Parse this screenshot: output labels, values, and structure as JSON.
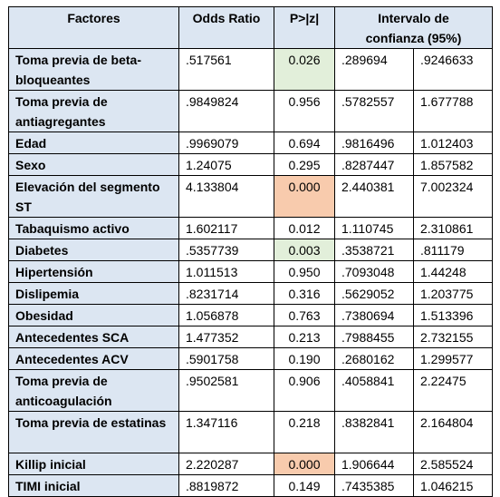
{
  "table": {
    "header": [
      "Factores",
      "Odds Ratio",
      "P>|z|",
      "Intervalo de confianza (95%)"
    ],
    "rows": [
      [
        "Toma previa de beta-bloqueantes",
        ".517561",
        "0.026",
        ".289694",
        ".9246633"
      ],
      [
        "Toma previa de antiagregantes",
        ".9849824",
        "0.956",
        ".5782557",
        "1.677788"
      ],
      [
        "Edad",
        ".9969079",
        "0.694",
        ".9816496",
        "1.012403"
      ],
      [
        "Sexo",
        "1.24075",
        "0.295",
        ".8287447",
        "1.857582"
      ],
      [
        "Elevación del segmento ST",
        "4.133804",
        "0.000",
        "2.440381",
        "7.002324"
      ],
      [
        "Tabaquismo activo",
        "1.602117",
        "0.012",
        "1.110745",
        "2.310861"
      ],
      [
        "Diabetes",
        ".5357739",
        "0.003",
        ".3538721",
        ".811179"
      ],
      [
        "Hipertensión",
        "1.011513",
        "0.950",
        ".7093048",
        "1.44248"
      ],
      [
        "Dislipemia",
        ".8231714",
        "0.316",
        ".5629052",
        "1.203775"
      ],
      [
        "Obesidad",
        "1.056878",
        "0.763",
        ".7380694",
        "1.513396"
      ],
      [
        "Antecedentes SCA",
        "1.477352",
        "0.213",
        ".7988455",
        "2.732155"
      ],
      [
        "Antecedentes ACV",
        ".5901758",
        "0.190",
        ".2680162",
        "1.299577"
      ],
      [
        "Toma previa de anticoagulación",
        ".9502581",
        "0.906",
        ".4058841",
        "2.22475"
      ],
      [
        "Toma previa de estatinas",
        "1.347116",
        "0.218",
        ".8382841",
        "2.164804"
      ],
      [
        "Killip inicial",
        "2.220287",
        "0.000",
        "1.906644",
        "2.585524"
      ],
      [
        "TIMI inicial",
        ".8819872",
        "0.149",
        ".7435385",
        "1.046215"
      ]
    ]
  }
}
